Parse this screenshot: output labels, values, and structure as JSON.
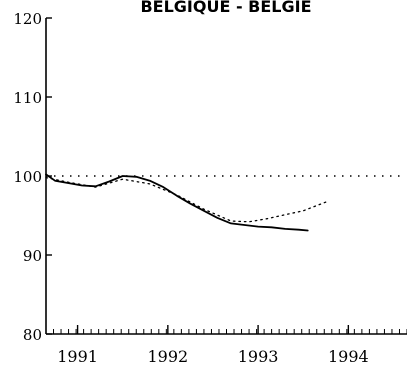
{
  "chart_data": {
    "type": "line",
    "title": "BELGIQUE - BELGIE",
    "xlabel": "",
    "ylabel": "",
    "xlim": [
      1990.65,
      1994.65
    ],
    "ylim": [
      80,
      120
    ],
    "y_ticks": [
      "80",
      "90",
      "100",
      "110",
      "120"
    ],
    "x_ticks": [
      "1991",
      "1992",
      "1993",
      "1994"
    ],
    "x_tick_values": [
      1991,
      1992,
      1993,
      1994
    ],
    "minor_ticks_per_year": 12,
    "grid": false,
    "reference_line": {
      "y": 100,
      "style": "dotted"
    },
    "series": [
      {
        "style": "solid",
        "x": [
          1990.65,
          1990.75,
          1990.9,
          1991.05,
          1991.2,
          1991.35,
          1991.5,
          1991.65,
          1991.8,
          1991.95,
          1992.1,
          1992.25,
          1992.4,
          1992.55,
          1992.7,
          1992.85,
          1993.0,
          1993.15,
          1993.3,
          1993.45,
          1993.55
        ],
        "y": [
          100.2,
          99.4,
          99.1,
          98.8,
          98.7,
          99.3,
          100.0,
          99.9,
          99.4,
          98.6,
          97.5,
          96.5,
          95.6,
          94.7,
          94.0,
          93.8,
          93.6,
          93.5,
          93.3,
          93.2,
          93.1
        ]
      },
      {
        "style": "dotted",
        "x": [
          1990.65,
          1990.9,
          1991.2,
          1991.5,
          1991.8,
          1992.1,
          1992.4,
          1992.7,
          1992.9,
          1993.1,
          1993.3,
          1993.5,
          1993.75
        ],
        "y": [
          99.8,
          99.2,
          98.6,
          99.6,
          99.0,
          97.6,
          95.8,
          94.3,
          94.2,
          94.6,
          95.1,
          95.6,
          96.7
        ]
      }
    ]
  }
}
